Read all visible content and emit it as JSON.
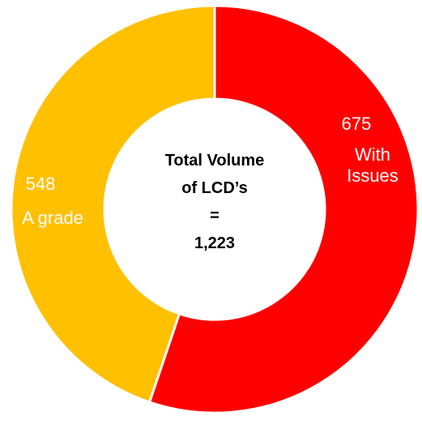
{
  "chart_data": {
    "type": "pie",
    "donut": true,
    "categories": [
      "With Issues",
      "A grade"
    ],
    "values": [
      675,
      548
    ],
    "colors": [
      "#ff0000",
      "#ffc000"
    ],
    "center_text": [
      "Total Volume",
      "of LCD’s",
      "=",
      "1,223"
    ]
  }
}
